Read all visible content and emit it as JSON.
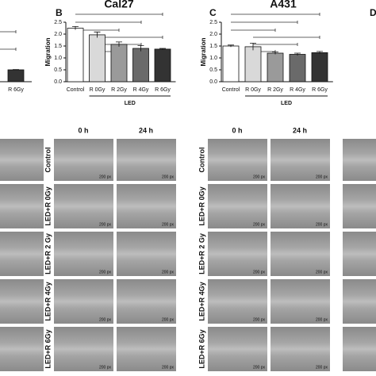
{
  "chart_data": [
    {
      "type": "bar",
      "categories": [
        "R 6Gy"
      ],
      "values": [
        1.2
      ],
      "errors": [
        0.03
      ],
      "ylim": [
        0,
        6
      ],
      "colors": [
        "#333333"
      ]
    },
    {
      "type": "bar",
      "title": "Cal27",
      "y_label": "Migration",
      "group_label": "LED",
      "categories": [
        "Control",
        "R 0Gy",
        "R 2Gy",
        "R 4Gy",
        "R 6Gy"
      ],
      "values": [
        2.25,
        1.97,
        1.57,
        1.4,
        1.37
      ],
      "errors": [
        0.07,
        0.12,
        0.1,
        0.12,
        0.03
      ],
      "colors": [
        "#ffffff",
        "#d9d9d9",
        "#9a9a9a",
        "#6a6a6a",
        "#333333"
      ],
      "ylim": [
        0,
        2.5
      ],
      "yticks": [
        {
          "value": 0,
          "label": "0.0"
        },
        0.5,
        {
          "value": 1,
          "label": "1.0"
        },
        1.5,
        {
          "value": 2,
          "label": "2.0"
        },
        2.5
      ]
    },
    {
      "type": "bar",
      "title": "A431",
      "y_label": "Migration",
      "group_label": "LED",
      "categories": [
        "Control",
        "R 0Gy",
        "R 2Gy",
        "R 4Gy",
        "R 6Gy"
      ],
      "values": [
        1.5,
        1.47,
        1.2,
        1.15,
        1.22
      ],
      "errors": [
        0.04,
        0.15,
        0.05,
        0.05,
        0.05
      ],
      "colors": [
        "#ffffff",
        "#d9d9d9",
        "#9a9a9a",
        "#6a6a6a",
        "#333333"
      ],
      "ylim": [
        0,
        2.5
      ],
      "yticks": [
        {
          "value": 0,
          "label": "0.0"
        },
        0.5,
        {
          "value": 1,
          "label": "1.0"
        },
        1.5,
        {
          "value": 2,
          "label": "2.0"
        },
        2.5
      ]
    }
  ],
  "panel_labels": [
    "B",
    "C",
    "D"
  ],
  "microscopy": {
    "time_headers": [
      "0 h",
      "24 h"
    ],
    "row_labels": [
      "Control",
      "LED+R 0Gy",
      "LED+R 2 Gy",
      "LED+R 4Gy",
      "LED+R 6Gy"
    ],
    "scale_label": "200 px"
  }
}
